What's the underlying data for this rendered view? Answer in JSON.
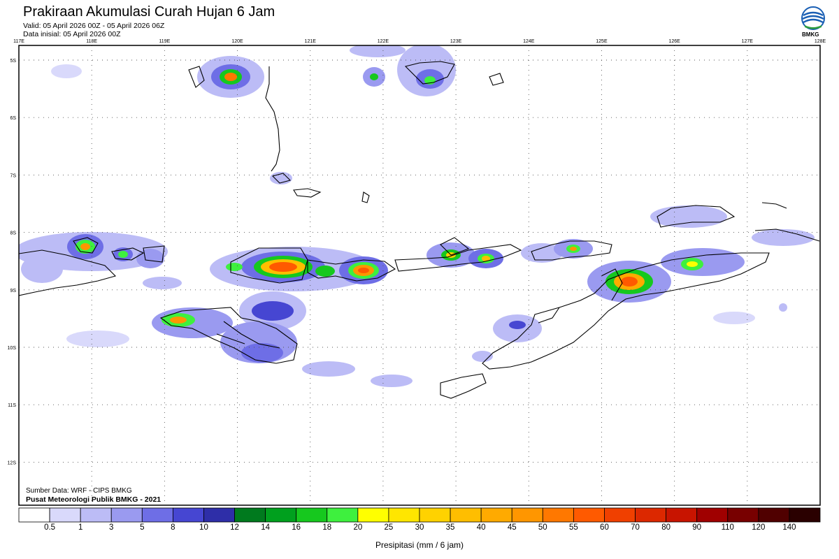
{
  "header": {
    "title": "Prakiraan Akumulasi Curah Hujan 6 Jam",
    "valid": "Valid: 05 April 2026 00Z - 05 April 2026 06Z",
    "init": "Data inisial: 05 April 2026 00Z",
    "logo_text": "BMKG"
  },
  "map": {
    "lon_labels": [
      "117E",
      "118E",
      "119E",
      "120E",
      "121E",
      "122E",
      "123E",
      "124E",
      "125E",
      "126E",
      "127E",
      "128E"
    ],
    "lat_labels": [
      "5S",
      "6S",
      "7S",
      "8S",
      "9S",
      "10S",
      "11S",
      "12S"
    ],
    "colors": {
      "land_outline": "#000000",
      "grid": "#555555"
    }
  },
  "footer": {
    "source": "Sumber Data: WRF - CIPS BMKG",
    "publisher": "Pusat Meteorologi Publik BMKG - 2021"
  },
  "legend": {
    "title": "Presipitasi (mm / 6 jam)",
    "labels": [
      "0.5",
      "1",
      "3",
      "5",
      "8",
      "10",
      "12",
      "14",
      "16",
      "18",
      "20",
      "25",
      "30",
      "35",
      "40",
      "45",
      "50",
      "55",
      "60",
      "70",
      "80",
      "90",
      "110",
      "120",
      "140"
    ],
    "colors": [
      "#ffffff",
      "#d9d9fb",
      "#bcbcf6",
      "#9a9af0",
      "#6e6ee6",
      "#4646d2",
      "#2e2ea8",
      "#007a1e",
      "#00a01e",
      "#16c81e",
      "#3ef03e",
      "#ffff00",
      "#ffe600",
      "#ffd200",
      "#ffbe00",
      "#ffaa00",
      "#ff9600",
      "#ff7800",
      "#ff5a00",
      "#f04000",
      "#dc2800",
      "#c81400",
      "#a00000",
      "#780000",
      "#500000",
      "#2a0000"
    ]
  }
}
